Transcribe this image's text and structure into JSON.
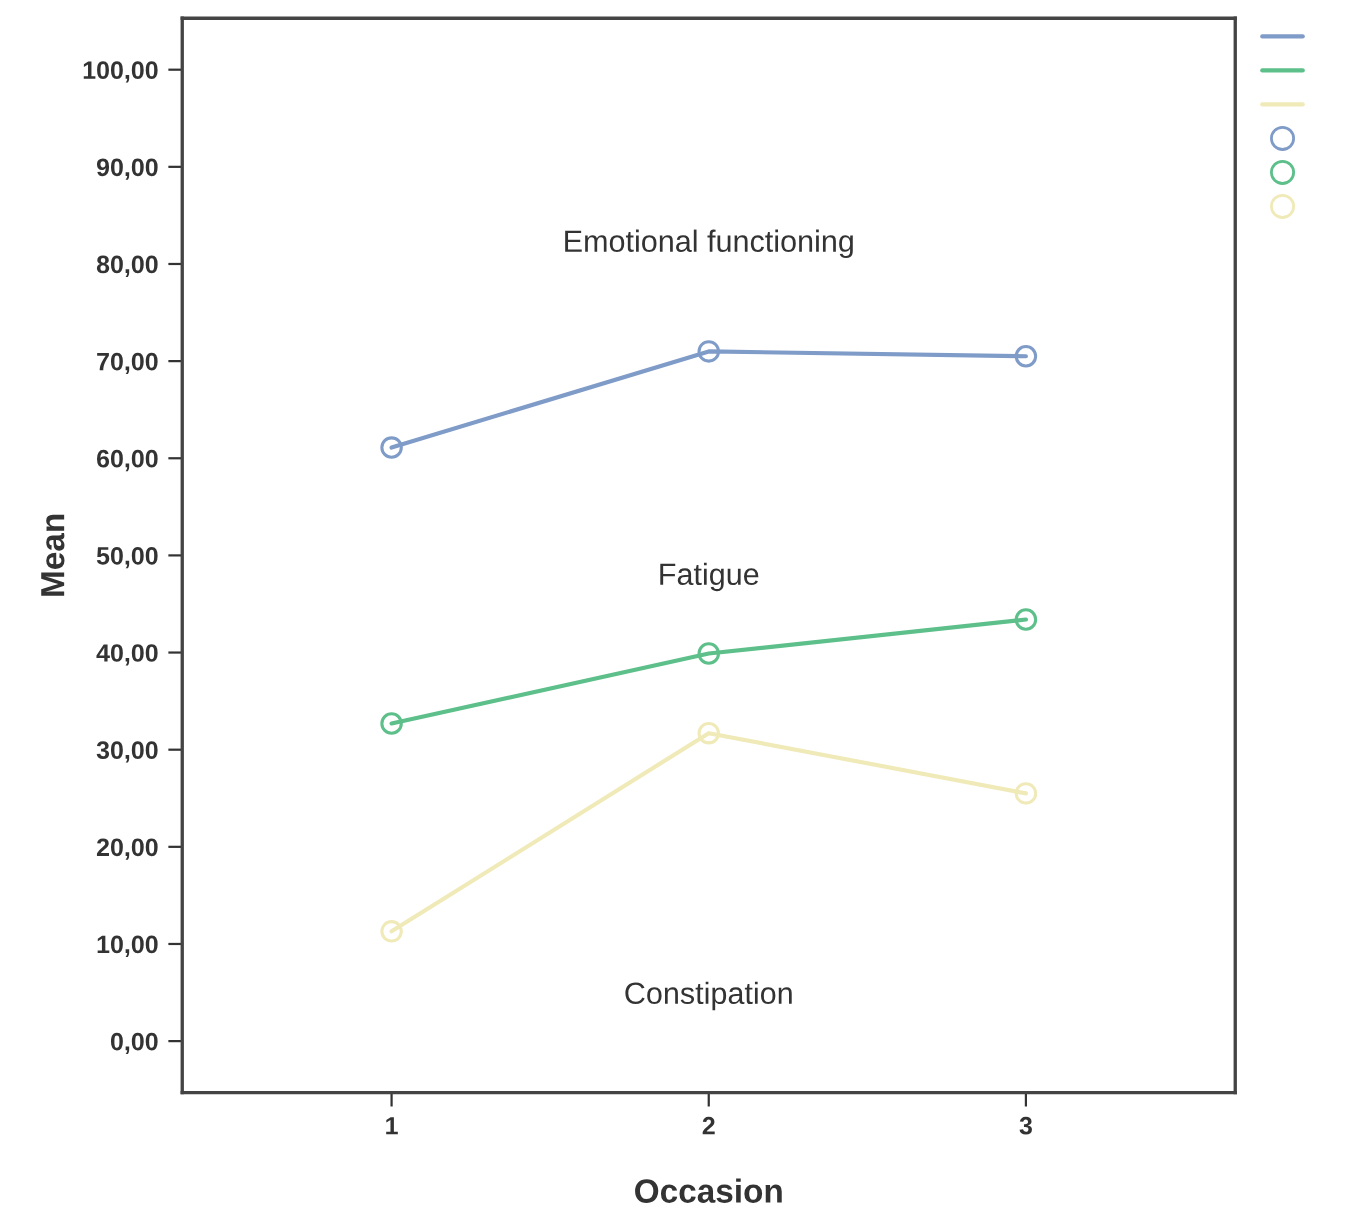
{
  "chart_data": {
    "type": "line",
    "xlabel": "Occasion",
    "ylabel": "Mean",
    "x": [
      1,
      2,
      3
    ],
    "series": [
      {
        "color": "#7f9bc8",
        "values": [
          61.1,
          71.0,
          70.5
        ]
      },
      {
        "color": "#5dbf8a",
        "values": [
          32.7,
          39.9,
          43.4
        ]
      },
      {
        "color": "#f0eab8",
        "values": [
          11.3,
          31.7,
          25.5
        ]
      }
    ],
    "annotations": [
      "Emotional functioning",
      "Fatigue",
      "Constipation"
    ],
    "xlim": [
      0.34,
      3.66
    ],
    "xticks": [
      1,
      2,
      3
    ],
    "ylim": [
      -5.3,
      105.3
    ],
    "yticks": [
      {
        "value": 0,
        "label": "0,00"
      },
      {
        "value": 10,
        "label": "10,00"
      },
      {
        "value": 20,
        "label": "20,00"
      },
      {
        "value": 30,
        "label": "30,00"
      },
      {
        "value": 40,
        "label": "40,00"
      },
      {
        "value": 50,
        "label": "50,00"
      },
      {
        "value": 60,
        "label": "60,00"
      },
      {
        "value": 70,
        "label": "70,00"
      },
      {
        "value": 80,
        "label": "80,00"
      },
      {
        "value": 90,
        "label": "90,00"
      },
      {
        "value": 100,
        "label": "100,00"
      }
    ],
    "marker": "circle",
    "line_style": "solid",
    "grid": false
  }
}
